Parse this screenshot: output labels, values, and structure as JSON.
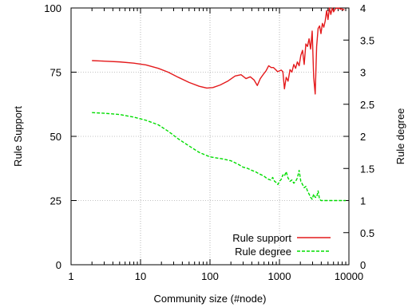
{
  "chart_data": {
    "type": "line",
    "title": "",
    "xlabel": "Community size (#node)",
    "ylabel": "Rule Support",
    "y2label": "Rule degree",
    "xscale": "log",
    "xlim": [
      1,
      10000
    ],
    "ylim": [
      0,
      100
    ],
    "y2lim": [
      0,
      4
    ],
    "xticks": [
      1,
      10,
      100,
      1000,
      10000
    ],
    "xtick_labels": [
      "1",
      "10",
      "100",
      "1000",
      "10000"
    ],
    "yticks": [
      0,
      25,
      50,
      75,
      100
    ],
    "ytick_labels": [
      "0",
      "25",
      "50",
      "75",
      "100"
    ],
    "y2ticks": [
      0,
      0.5,
      1,
      1.5,
      2,
      2.5,
      3,
      3.5,
      4
    ],
    "y2tick_labels": [
      "0",
      "0.5",
      "1",
      "1.5",
      "2",
      "2.5",
      "3",
      "3.5",
      "4"
    ],
    "grid": true,
    "legend_position": "bottom-right",
    "series": [
      {
        "name": "Rule support",
        "axis": "left",
        "color": "#e41a1c",
        "dash": "solid",
        "x": [
          2,
          3,
          5,
          8,
          12,
          18,
          25,
          35,
          50,
          70,
          90,
          110,
          140,
          180,
          230,
          280,
          330,
          380,
          430,
          480,
          530,
          580,
          640,
          700,
          760,
          820,
          880,
          940,
          1000,
          1060,
          1120,
          1180,
          1250,
          1330,
          1420,
          1510,
          1610,
          1710,
          1810,
          1920,
          2030,
          2150,
          2270,
          2400,
          2530,
          2670,
          2810,
          2960,
          3110,
          3270,
          3430,
          3600,
          3780,
          3960,
          4150,
          4350,
          4560,
          4780,
          5000,
          5240,
          5490,
          5750,
          6020,
          6300,
          6590,
          6890,
          7200,
          7530,
          7870,
          8220,
          8590
        ],
        "y": [
          79.5,
          79.3,
          79,
          78.5,
          77.8,
          76.5,
          75,
          73,
          71,
          69.5,
          68.8,
          69,
          70,
          71.5,
          73.5,
          74,
          72.5,
          73.2,
          72,
          69.8,
          72.5,
          74,
          75.5,
          77.5,
          76.8,
          76.8,
          76,
          75.2,
          75.5,
          75.8,
          75.2,
          68.5,
          73,
          71.5,
          76,
          75,
          78,
          76.5,
          79,
          77.5,
          81.5,
          83.5,
          78,
          86,
          85,
          88,
          84,
          91,
          73,
          66.5,
          85,
          92,
          93,
          90,
          94,
          92.5,
          95,
          99,
          95.5,
          100,
          97.5,
          100,
          98.5,
          99.5,
          100,
          99.8,
          100,
          99.5,
          99.8,
          99.2,
          99.5
        ]
      },
      {
        "name": "Rule degree",
        "axis": "right",
        "color": "#00dd00",
        "dash": "dashed",
        "x": [
          2,
          3,
          5,
          8,
          12,
          18,
          25,
          35,
          50,
          70,
          100,
          150,
          200,
          250,
          300,
          350,
          400,
          450,
          500,
          550,
          600,
          650,
          700,
          750,
          800,
          850,
          900,
          950,
          1000,
          1060,
          1120,
          1180,
          1250,
          1330,
          1420,
          1510,
          1610,
          1710,
          1810,
          1920,
          2030,
          2150,
          2270,
          2400,
          2530,
          2670,
          2810,
          2960,
          3110,
          3270,
          3430,
          3600,
          3780,
          3960,
          4150,
          4350,
          4560,
          4780,
          5000,
          6000,
          7000,
          8000,
          9000
        ],
        "y": [
          2.37,
          2.36,
          2.34,
          2.3,
          2.25,
          2.18,
          2.08,
          1.96,
          1.85,
          1.75,
          1.68,
          1.65,
          1.62,
          1.57,
          1.52,
          1.5,
          1.47,
          1.45,
          1.42,
          1.4,
          1.38,
          1.35,
          1.33,
          1.32,
          1.36,
          1.3,
          1.28,
          1.25,
          1.3,
          1.33,
          1.4,
          1.38,
          1.45,
          1.35,
          1.3,
          1.32,
          1.27,
          1.3,
          1.35,
          1.47,
          1.3,
          1.25,
          1.2,
          1.22,
          1.15,
          1.1,
          1.05,
          1.02,
          1.1,
          1.05,
          1.05,
          1.15,
          1.02,
          1,
          1.0,
          1.0,
          1.0,
          1.0,
          1.0,
          1.0,
          1.0,
          1.0,
          1.0
        ]
      }
    ]
  }
}
